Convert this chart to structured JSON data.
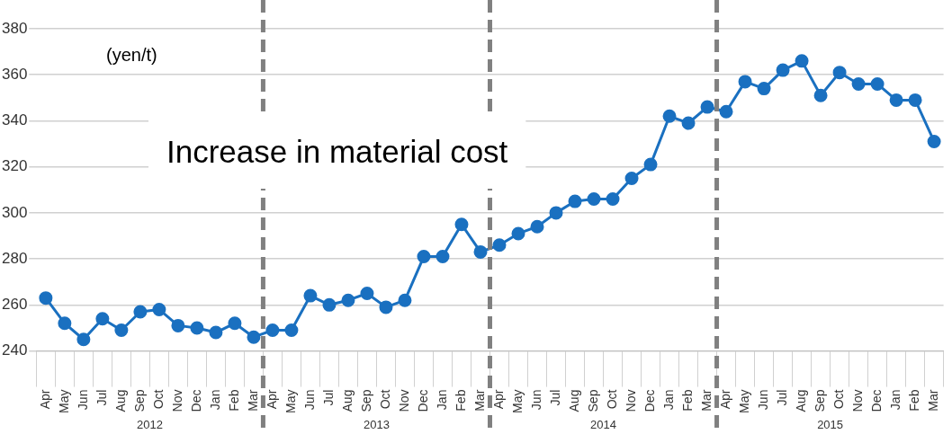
{
  "chart_data": {
    "type": "line",
    "categories": [
      "Apr",
      "May",
      "Jun",
      "Jul",
      "Aug",
      "Sep",
      "Oct",
      "Nov",
      "Dec",
      "Jan",
      "Feb",
      "Mar",
      "Apr",
      "May",
      "Jun",
      "Jul",
      "Aug",
      "Sep",
      "Oct",
      "Nov",
      "Dec",
      "Jan",
      "Feb",
      "Mar",
      "Apr",
      "May",
      "Jun",
      "Jul",
      "Aug",
      "Sep",
      "Oct",
      "Nov",
      "Dec",
      "Jan",
      "Feb",
      "Mar",
      "Apr",
      "May",
      "Jun",
      "Jul",
      "Aug",
      "Sep",
      "Oct",
      "Nov",
      "Dec",
      "Jan",
      "Feb",
      "Mar"
    ],
    "series": [
      {
        "color": "#1a70c0",
        "values": [
          263,
          252,
          245,
          254,
          249,
          257,
          258,
          251,
          250,
          248,
          252,
          246,
          249,
          249,
          264,
          260,
          262,
          265,
          259,
          262,
          281,
          281,
          295,
          283,
          286,
          291,
          294,
          300,
          305,
          306,
          306,
          315,
          321,
          342,
          339,
          346,
          344,
          357,
          354,
          362,
          366,
          351,
          361,
          356,
          356,
          349,
          349,
          331
        ]
      }
    ],
    "ylim": [
      240,
      380
    ],
    "yticks": [
      240,
      260,
      280,
      300,
      320,
      340,
      360,
      380
    ],
    "grid": "y",
    "legend": false,
    "marker": "circle",
    "line_style": "solid",
    "annotations": [
      "(yen/t)",
      "Increase in material cost",
      "2012",
      "2013",
      "2014",
      "2015"
    ]
  }
}
